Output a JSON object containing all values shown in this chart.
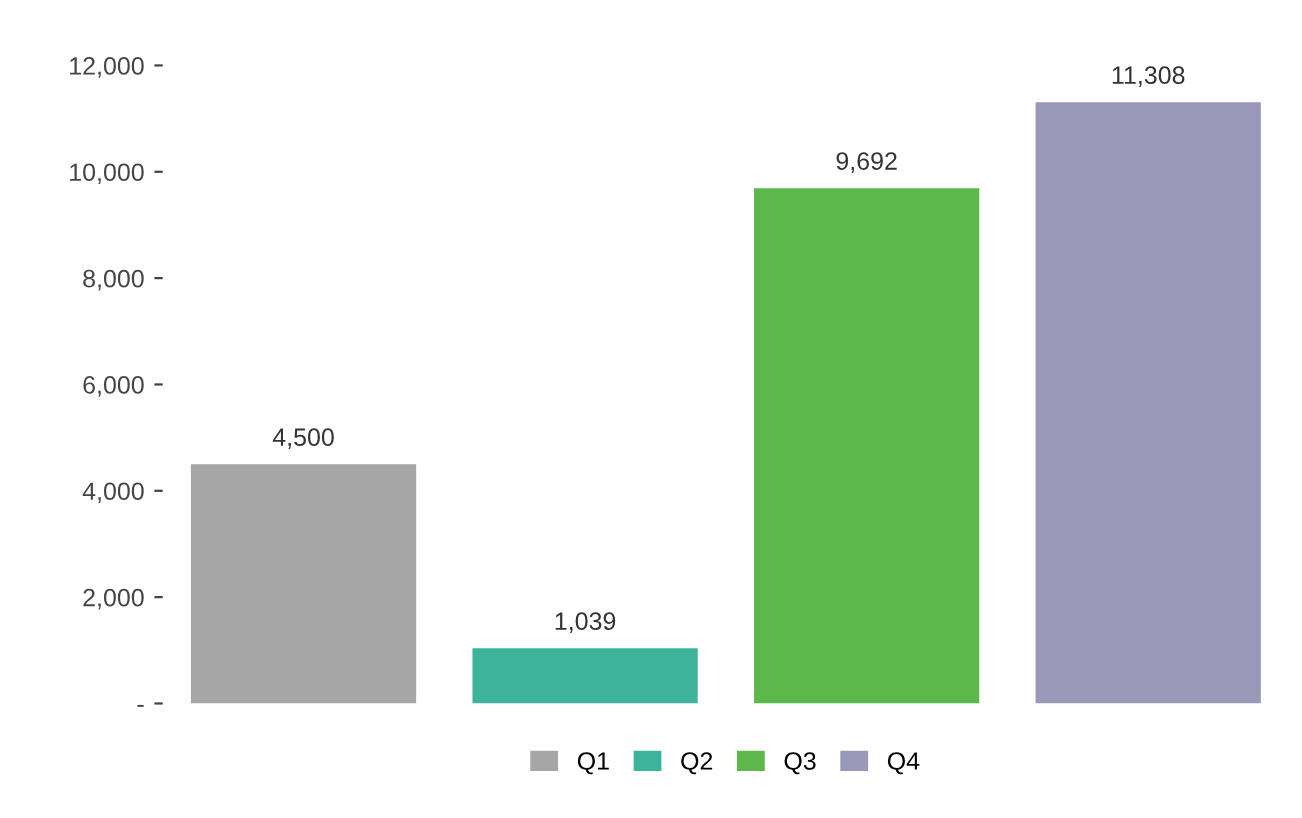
{
  "chart_data": {
    "type": "bar",
    "categories": [
      null,
      null,
      null,
      null
    ],
    "stacked": true,
    "series": [
      {
        "name": "Q1",
        "color": "#a6a6a6",
        "values": [
          4500,
          null,
          null,
          null
        ]
      },
      {
        "name": "Q2",
        "color": "#3cb39a",
        "values": [
          null,
          1039,
          null,
          null
        ]
      },
      {
        "name": "Q3",
        "color": "#5cb84a",
        "values": [
          null,
          null,
          9692,
          null
        ]
      },
      {
        "name": "Q4",
        "color": "#9a98b8",
        "values": [
          null,
          null,
          null,
          11308
        ]
      }
    ],
    "value_labels": [
      "4,500",
      "1,039",
      "9,692",
      "11,308"
    ],
    "ylim": [
      0,
      12000
    ],
    "yticks": [
      {
        "value": 0,
        "label": "-"
      },
      {
        "value": 2000,
        "label": "2,000"
      },
      {
        "value": 4000,
        "label": "4,000"
      },
      {
        "value": 6000,
        "label": "6,000"
      },
      {
        "value": 8000,
        "label": "8,000"
      },
      {
        "value": 10000,
        "label": "10,000"
      },
      {
        "value": 12000,
        "label": "12,000"
      }
    ],
    "legend": "bottom"
  }
}
